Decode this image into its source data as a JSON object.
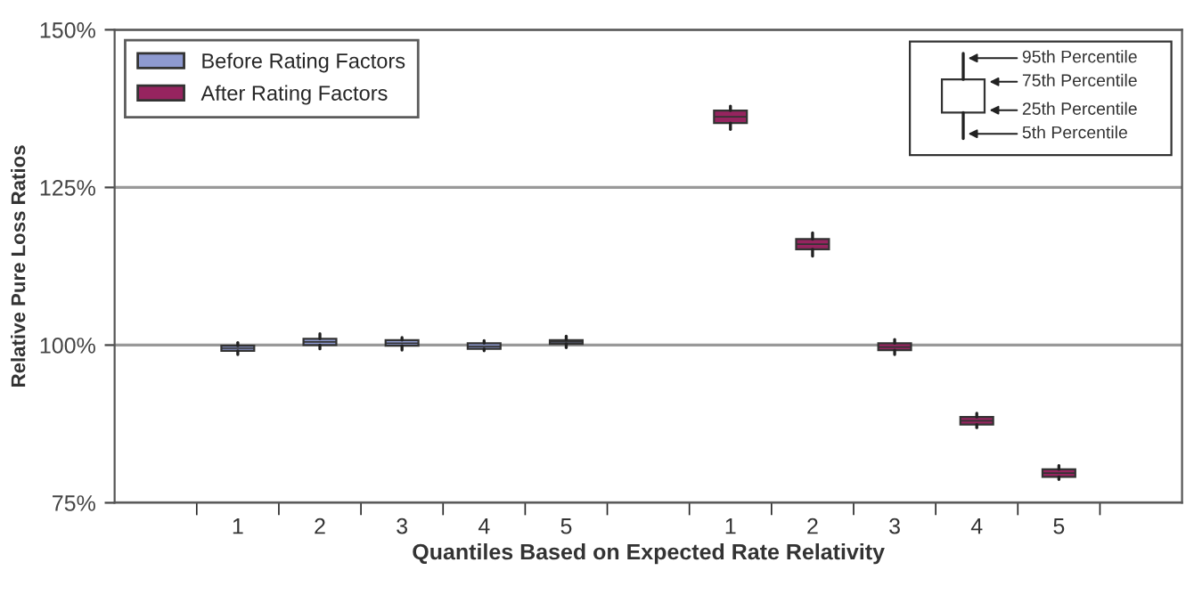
{
  "chart_data": {
    "type": "box",
    "xlabel": "Quantiles Based on Expected Rate Relativity",
    "ylabel": "Relative Pure Loss Ratios",
    "categories": [
      null,
      "1",
      "2",
      "3",
      "4",
      "5",
      null,
      "1",
      "2",
      "3",
      "4",
      "5",
      null
    ],
    "series": [
      {
        "name": "Before Rating Factors",
        "color": "#8e9ad0",
        "boxes": [
          null,
          {
            "low": 98.5,
            "q1": 99.1,
            "median": 99.5,
            "q3": 99.9,
            "high": 100.4
          },
          {
            "low": 99.4,
            "q1": 100.0,
            "median": 100.5,
            "q3": 101.0,
            "high": 101.8
          },
          {
            "low": 99.2,
            "q1": 99.9,
            "median": 100.3,
            "q3": 100.8,
            "high": 101.2
          },
          {
            "low": 99.1,
            "q1": 99.4,
            "median": 99.8,
            "q3": 100.3,
            "high": 100.7
          },
          {
            "low": 99.6,
            "q1": 100.2,
            "median": 100.5,
            "q3": 100.8,
            "high": 101.4
          },
          null,
          null,
          null,
          null,
          null,
          null,
          null
        ]
      },
      {
        "name": "After Rating Factors",
        "color": "#96245f",
        "boxes": [
          null,
          null,
          null,
          null,
          null,
          null,
          null,
          {
            "low": 134.2,
            "q1": 135.2,
            "median": 136.2,
            "q3": 137.2,
            "high": 137.9
          },
          {
            "low": 114.1,
            "q1": 115.2,
            "median": 116.0,
            "q3": 116.8,
            "high": 117.8
          },
          {
            "low": 98.5,
            "q1": 99.2,
            "median": 99.7,
            "q3": 100.3,
            "high": 100.9
          },
          {
            "low": 86.9,
            "q1": 87.4,
            "median": 88.0,
            "q3": 88.6,
            "high": 89.2
          },
          {
            "low": 78.7,
            "q1": 79.1,
            "median": 79.7,
            "q3": 80.3,
            "high": 80.9
          },
          null
        ]
      }
    ],
    "ylim": [
      75,
      150
    ],
    "yticks": [
      {
        "value": 75,
        "label": "75%"
      },
      {
        "value": 100,
        "label": "100%"
      },
      {
        "value": 125,
        "label": "125%"
      },
      {
        "value": 150,
        "label": "150%"
      }
    ],
    "grid": "y",
    "legend": "top left",
    "annotations": [
      "95th Percentile",
      "75th Percentile",
      "25th Percentile",
      "5th Percentile"
    ]
  }
}
